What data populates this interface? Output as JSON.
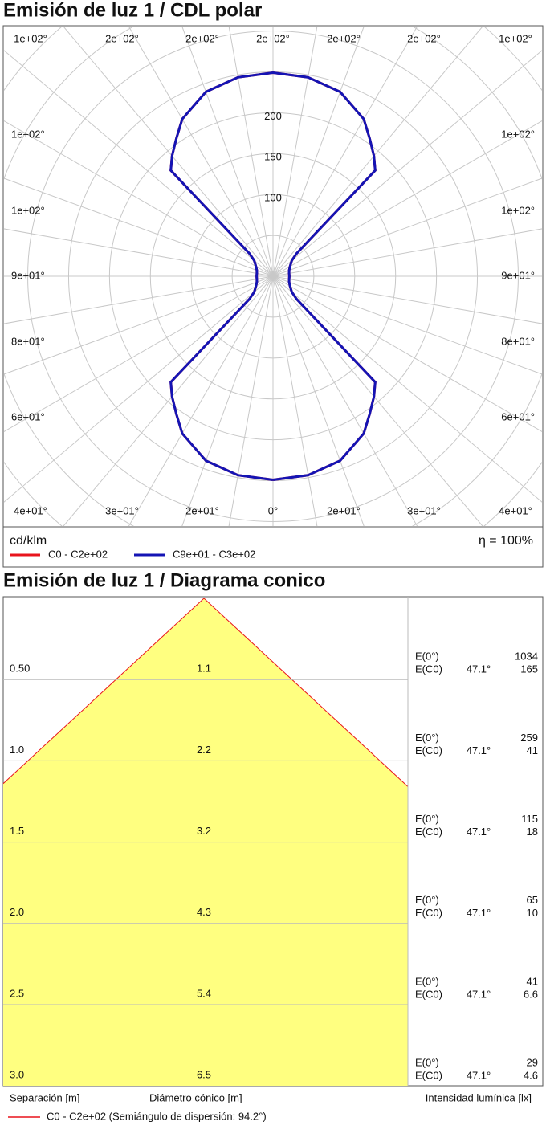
{
  "chart_data": {
    "type": "polar",
    "title": "Emisión de luz 1 / CDL polar",
    "unit_label": "cd/klm",
    "efficiency": "η = 100%",
    "rlim": [
      0,
      330
    ],
    "rticks": [
      {
        "value": 50,
        "label": null
      },
      100,
      150,
      200,
      {
        "value": 250,
        "label": null
      },
      {
        "value": 300,
        "label": null
      },
      {
        "value": 350,
        "label": null
      },
      {
        "value": 400,
        "label": null
      },
      {
        "value": 450,
        "label": null
      }
    ],
    "angle_labels": {
      "top": [
        "1e+02°",
        "2e+02°",
        "2e+02°",
        "2e+02°",
        "2e+02°",
        "2e+02°",
        "1e+02°"
      ],
      "left": [
        "1e+02°",
        "1e+02°",
        "9e+01°",
        "8e+01°",
        "6e+01°"
      ],
      "right": [
        "1e+02°",
        "1e+02°",
        "9e+01°",
        "8e+01°",
        "6e+01°"
      ],
      "bottom": [
        "4e+01°",
        "3e+01°",
        "2e+01°",
        "0°",
        "2e+01°",
        "3e+01°",
        "4e+01°"
      ]
    },
    "angles": [
      0,
      10,
      20,
      30,
      35,
      40,
      44,
      46,
      50,
      60,
      70,
      80,
      90,
      100,
      110,
      120,
      130,
      134,
      136,
      140,
      145,
      150,
      160,
      170,
      180,
      190,
      200,
      210,
      215,
      220,
      224,
      226,
      230,
      240,
      250,
      260,
      270,
      280,
      290,
      300,
      310,
      314,
      316,
      320,
      325,
      330,
      340,
      350,
      360
    ],
    "series": [
      {
        "name": "C0 - C2e+02",
        "color": "#e8141c",
        "values": [
          249,
          247,
          240,
          222,
          206,
          192,
          180,
          40,
          30,
          24,
          21,
          20,
          20,
          20,
          21,
          24,
          30,
          40,
          180,
          192,
          206,
          222,
          240,
          247,
          249,
          247,
          240,
          222,
          206,
          192,
          180,
          40,
          30,
          24,
          21,
          20,
          20,
          20,
          21,
          24,
          30,
          40,
          180,
          192,
          206,
          222,
          240,
          247,
          249
        ]
      },
      {
        "name": "C9e+01 - C3e+02",
        "color": "#1414b4",
        "values": [
          249,
          247,
          240,
          222,
          206,
          192,
          180,
          40,
          30,
          24,
          21,
          20,
          20,
          20,
          21,
          24,
          30,
          40,
          180,
          192,
          206,
          222,
          240,
          247,
          249,
          247,
          240,
          222,
          206,
          192,
          180,
          40,
          30,
          24,
          21,
          20,
          20,
          20,
          21,
          24,
          30,
          40,
          180,
          192,
          206,
          222,
          240,
          247,
          249
        ]
      }
    ]
  },
  "cone_diagram": {
    "title": "Emisión de luz 1 / Diagrama conico",
    "rows": [
      {
        "distance": "0.50",
        "diameter": 1.1,
        "e0_label": "E(0°)",
        "e0": 1034,
        "ec_label": "E(C0)",
        "angle": "47.1°",
        "ec": 165
      },
      {
        "distance": "1.0",
        "diameter": 2.2,
        "e0_label": "E(0°)",
        "e0": 259,
        "ec_label": "E(C0)",
        "angle": "47.1°",
        "ec": 41
      },
      {
        "distance": "1.5",
        "diameter": 3.2,
        "e0_label": "E(0°)",
        "e0": 115,
        "ec_label": "E(C0)",
        "angle": "47.1°",
        "ec": 18
      },
      {
        "distance": "2.0",
        "diameter": 4.3,
        "e0_label": "E(0°)",
        "e0": 65,
        "ec_label": "E(C0)",
        "angle": "47.1°",
        "ec": 10
      },
      {
        "distance": "2.5",
        "diameter": 5.4,
        "e0_label": "E(0°)",
        "e0": 41,
        "ec_label": "E(C0)",
        "angle": "47.1°",
        "ec": 6.6
      },
      {
        "distance": "3.0",
        "diameter": 6.5,
        "e0_label": "E(0°)",
        "e0": 29,
        "ec_label": "E(C0)",
        "angle": "47.1°",
        "ec": 4.6
      }
    ],
    "footer": {
      "separation": "Separación [m]",
      "diameter": "Diámetro cónico [m]",
      "intensity": "Intensidad lumínica [lx]"
    },
    "legend": {
      "label": "C0 - C2e+02 (Semiángulo de dispersión: 94.2°)",
      "color": "#e8141c"
    }
  }
}
